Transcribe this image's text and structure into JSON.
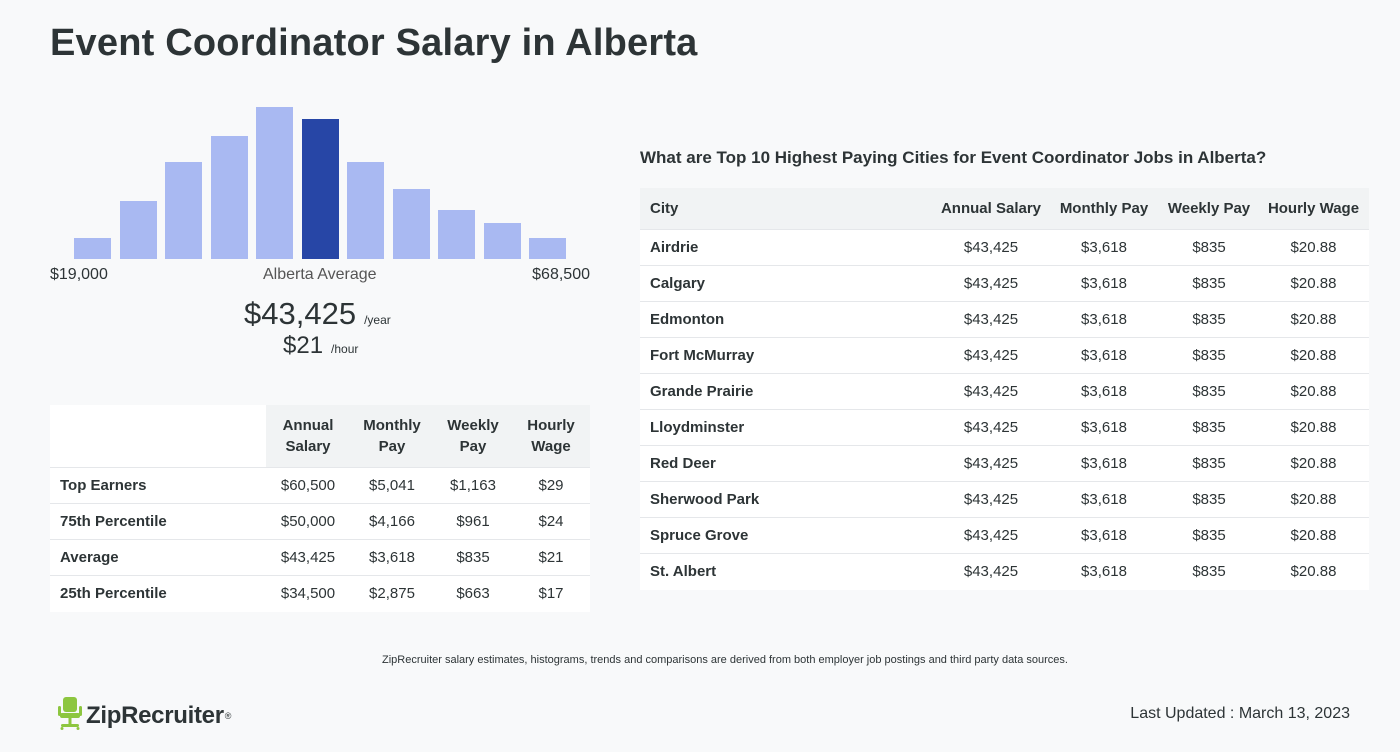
{
  "page": {
    "title": "Event Coordinator Salary in Alberta"
  },
  "histogram": {
    "range_low": "$19,000",
    "range_high": "$68,500",
    "average_label": "Alberta Average",
    "highlight_index": 5,
    "relative_heights": [
      0.14,
      0.38,
      0.64,
      0.81,
      1.0,
      0.92,
      0.64,
      0.46,
      0.32,
      0.24,
      0.14
    ],
    "colors": {
      "bar": "#a9b9f2",
      "highlight": "#2746a6"
    }
  },
  "average": {
    "yearly": "$43,425",
    "yearly_unit": "/year",
    "hourly": "$21",
    "hourly_unit": "/hour"
  },
  "percentile_table": {
    "headers": [
      "Annual Salary",
      "Monthly Pay",
      "Weekly Pay",
      "Hourly Wage"
    ],
    "rows": [
      {
        "label": "Top Earners",
        "values": [
          "$60,500",
          "$5,041",
          "$1,163",
          "$29"
        ]
      },
      {
        "label": "75th Percentile",
        "values": [
          "$50,000",
          "$4,166",
          "$961",
          "$24"
        ]
      },
      {
        "label": "Average",
        "values": [
          "$43,425",
          "$3,618",
          "$835",
          "$21"
        ]
      },
      {
        "label": "25th Percentile",
        "values": [
          "$34,500",
          "$2,875",
          "$663",
          "$17"
        ]
      }
    ]
  },
  "city_table": {
    "question": "What are Top 10 Highest Paying Cities for Event Coordinator Jobs in Alberta?",
    "headers": [
      "City",
      "Annual Salary",
      "Monthly Pay",
      "Weekly Pay",
      "Hourly Wage"
    ],
    "rows": [
      {
        "city": "Airdrie",
        "values": [
          "$43,425",
          "$3,618",
          "$835",
          "$20.88"
        ]
      },
      {
        "city": "Calgary",
        "values": [
          "$43,425",
          "$3,618",
          "$835",
          "$20.88"
        ]
      },
      {
        "city": "Edmonton",
        "values": [
          "$43,425",
          "$3,618",
          "$835",
          "$20.88"
        ]
      },
      {
        "city": "Fort McMurray",
        "values": [
          "$43,425",
          "$3,618",
          "$835",
          "$20.88"
        ]
      },
      {
        "city": "Grande Prairie",
        "values": [
          "$43,425",
          "$3,618",
          "$835",
          "$20.88"
        ]
      },
      {
        "city": "Lloydminster",
        "values": [
          "$43,425",
          "$3,618",
          "$835",
          "$20.88"
        ]
      },
      {
        "city": "Red Deer",
        "values": [
          "$43,425",
          "$3,618",
          "$835",
          "$20.88"
        ]
      },
      {
        "city": "Sherwood Park",
        "values": [
          "$43,425",
          "$3,618",
          "$835",
          "$20.88"
        ]
      },
      {
        "city": "Spruce Grove",
        "values": [
          "$43,425",
          "$3,618",
          "$835",
          "$20.88"
        ]
      },
      {
        "city": "St. Albert",
        "values": [
          "$43,425",
          "$3,618",
          "$835",
          "$20.88"
        ]
      }
    ]
  },
  "footer": {
    "disclaimer": "ZipRecruiter salary estimates, histograms, trends and comparisons are derived from both employer job postings and third party data sources.",
    "brand": "ZipRecruiter",
    "brand_mark": "®",
    "logo_icon": "chair-icon",
    "logo_color": "#8dc63f",
    "last_updated": "Last Updated : March 13, 2023"
  }
}
